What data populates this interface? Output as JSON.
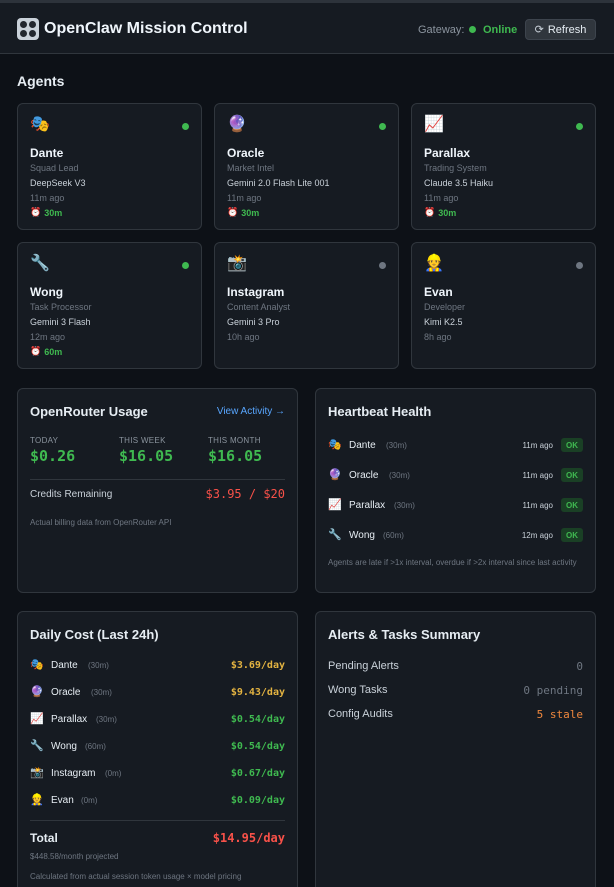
{
  "header": {
    "title": "OpenClaw Mission Control",
    "gateway_label": "Gateway:",
    "gateway_status": "Online",
    "refresh_label": "Refresh"
  },
  "colors": {
    "online": "#3fb950",
    "offline": "#6e7681",
    "green": "#3fb950",
    "yellow": "#e3b341",
    "red": "#f85149",
    "orange": "#f0883e",
    "muted": "#6e7681"
  },
  "agents_title": "Agents",
  "agents": [
    {
      "emoji": "🎭",
      "name": "Dante",
      "role": "Squad Lead",
      "model": "DeepSeek V3",
      "last_seen": "11m ago",
      "interval": "30m",
      "online": true
    },
    {
      "emoji": "🔮",
      "name": "Oracle",
      "role": "Market Intel",
      "model": "Gemini 2.0 Flash Lite 001",
      "last_seen": "11m ago",
      "interval": "30m",
      "online": true
    },
    {
      "emoji": "📈",
      "name": "Parallax",
      "role": "Trading System",
      "model": "Claude 3.5 Haiku",
      "last_seen": "11m ago",
      "interval": "30m",
      "online": true
    },
    {
      "emoji": "🔧",
      "name": "Wong",
      "role": "Task Processor",
      "model": "Gemini 3 Flash",
      "last_seen": "12m ago",
      "interval": "60m",
      "online": true
    },
    {
      "emoji": "📸",
      "name": "Instagram",
      "role": "Content Analyst",
      "model": "Gemini 3 Pro",
      "last_seen": "10h ago",
      "interval": "",
      "online": false
    },
    {
      "emoji": "👷",
      "name": "Evan",
      "role": "Developer",
      "model": "Kimi K2.5",
      "last_seen": "8h ago",
      "interval": "",
      "online": false
    }
  ],
  "usage": {
    "title": "OpenRouter Usage",
    "link": "View Activity →",
    "today_label": "TODAY",
    "today_value": "$0.26",
    "week_label": "THIS WEEK",
    "week_value": "$16.05",
    "month_label": "THIS MONTH",
    "month_value": "$16.05",
    "credits_label": "Credits Remaining",
    "credits_value": "$3.95 / $20",
    "footnote": "Actual billing data from OpenRouter API"
  },
  "heartbeat": {
    "title": "Heartbeat Health",
    "rows": [
      {
        "emoji": "🎭",
        "name": "Dante",
        "interval": "(30m)",
        "ago": "11m ago",
        "status": "OK"
      },
      {
        "emoji": "🔮",
        "name": "Oracle",
        "interval": "(30m)",
        "ago": "11m ago",
        "status": "OK"
      },
      {
        "emoji": "📈",
        "name": "Parallax",
        "interval": "(30m)",
        "ago": "11m ago",
        "status": "OK"
      },
      {
        "emoji": "🔧",
        "name": "Wong",
        "interval": "(60m)",
        "ago": "12m ago",
        "status": "OK"
      }
    ],
    "footnote": "Agents are late if >1x interval, overdue if >2x interval since last activity"
  },
  "daily_cost": {
    "title": "Daily Cost (Last 24h)",
    "rows": [
      {
        "emoji": "🎭",
        "name": "Dante",
        "interval": "(30m)",
        "value": "$3.69/day",
        "level": "yellow"
      },
      {
        "emoji": "🔮",
        "name": "Oracle",
        "interval": "(30m)",
        "value": "$9.43/day",
        "level": "yellow"
      },
      {
        "emoji": "📈",
        "name": "Parallax",
        "interval": "(30m)",
        "value": "$0.54/day",
        "level": "green"
      },
      {
        "emoji": "🔧",
        "name": "Wong",
        "interval": "(60m)",
        "value": "$0.54/day",
        "level": "green"
      },
      {
        "emoji": "📸",
        "name": "Instagram",
        "interval": "(0m)",
        "value": "$0.67/day",
        "level": "green"
      },
      {
        "emoji": "👷",
        "name": "Evan",
        "interval": "(0m)",
        "value": "$0.09/day",
        "level": "green"
      }
    ],
    "total_label": "Total",
    "total_value": "$14.95/day",
    "projected": "$448.58/month projected",
    "footnote": "Calculated from actual session token usage × model pricing"
  },
  "summary": {
    "title": "Alerts & Tasks Summary",
    "rows": [
      {
        "label": "Pending Alerts",
        "value": "0",
        "level": "muted"
      },
      {
        "label": "Wong Tasks",
        "value": "0 pending",
        "level": "muted"
      },
      {
        "label": "Config Audits",
        "value": "5 stale",
        "level": "orange"
      }
    ]
  }
}
